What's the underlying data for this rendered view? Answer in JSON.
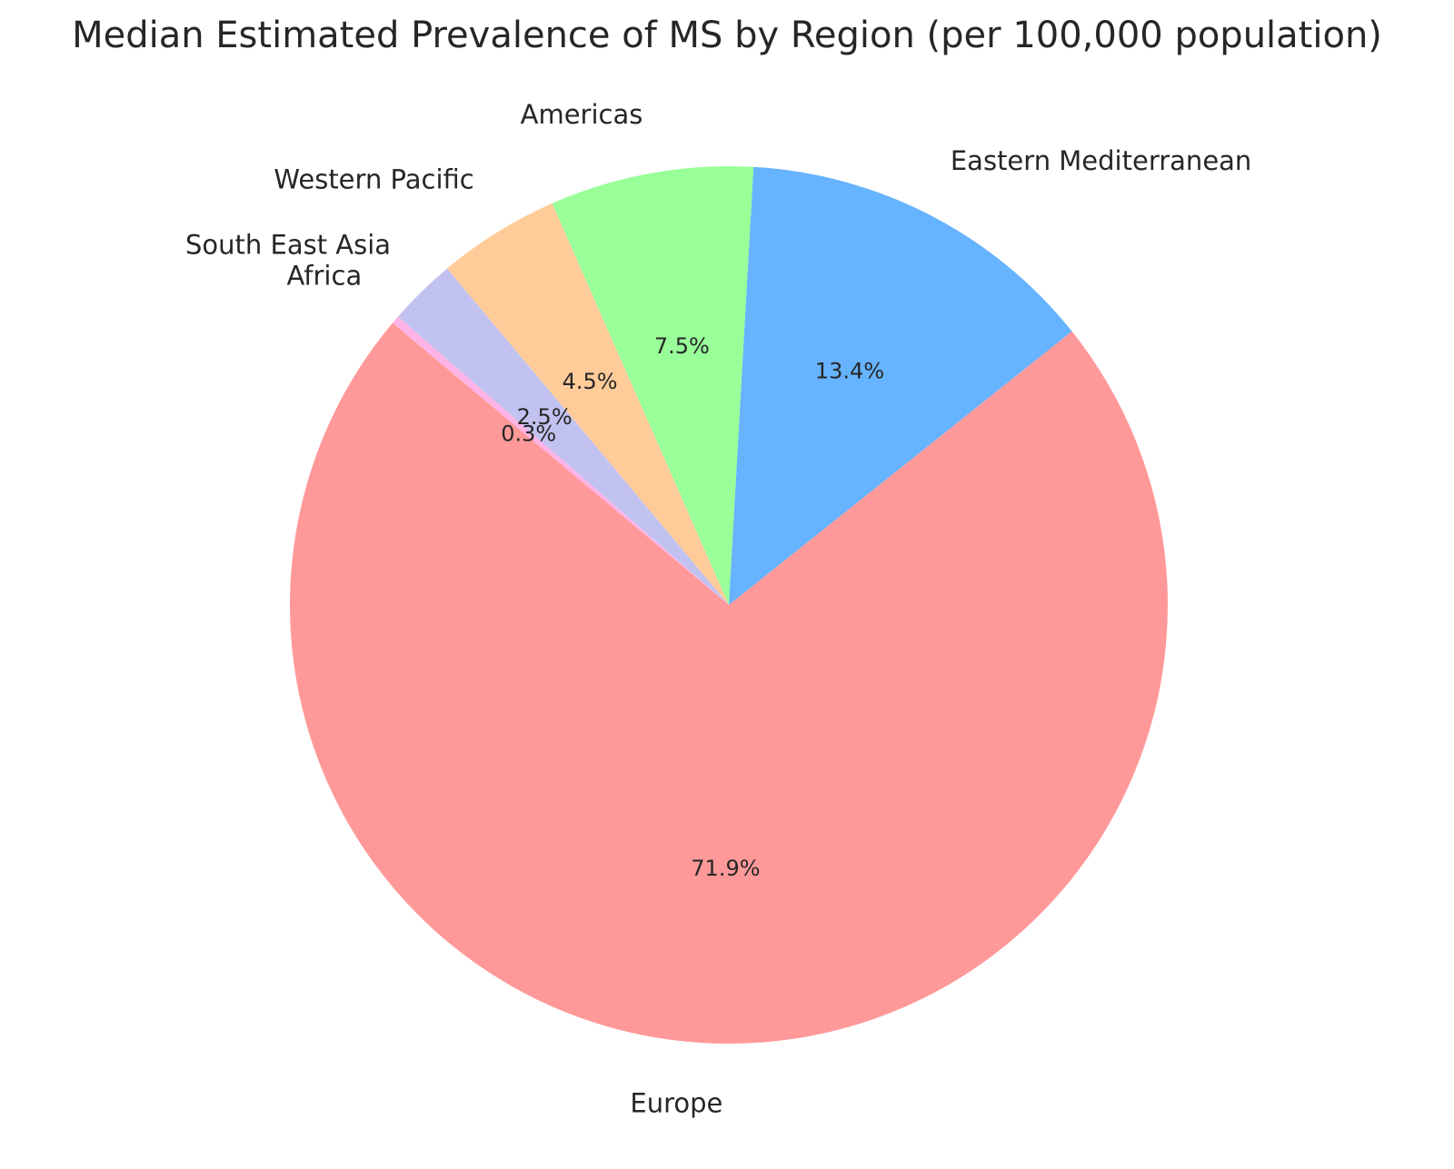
{
  "chart_data": {
    "type": "pie",
    "title": "Median Estimated Prevalence of MS by Region (per 100,000 population)",
    "start_angle_deg": 140,
    "direction": "counterclockwise",
    "legend": "none",
    "slices": [
      {
        "name": "Europe",
        "percent": 71.9,
        "percent_label": "71.9%",
        "color": "#ff9999"
      },
      {
        "name": "Eastern Mediterranean",
        "percent": 13.4,
        "percent_label": "13.4%",
        "color": "#66b3ff"
      },
      {
        "name": "Americas",
        "percent": 7.5,
        "percent_label": "7.5%",
        "color": "#99ff99"
      },
      {
        "name": "Western Pacific",
        "percent": 4.5,
        "percent_label": "4.5%",
        "color": "#ffcc99"
      },
      {
        "name": "South East Asia",
        "percent": 2.5,
        "percent_label": "2.5%",
        "color": "#c2c2f0"
      },
      {
        "name": "Africa",
        "percent": 0.3,
        "percent_label": "0.3%",
        "color": "#ffb3e6"
      }
    ]
  }
}
